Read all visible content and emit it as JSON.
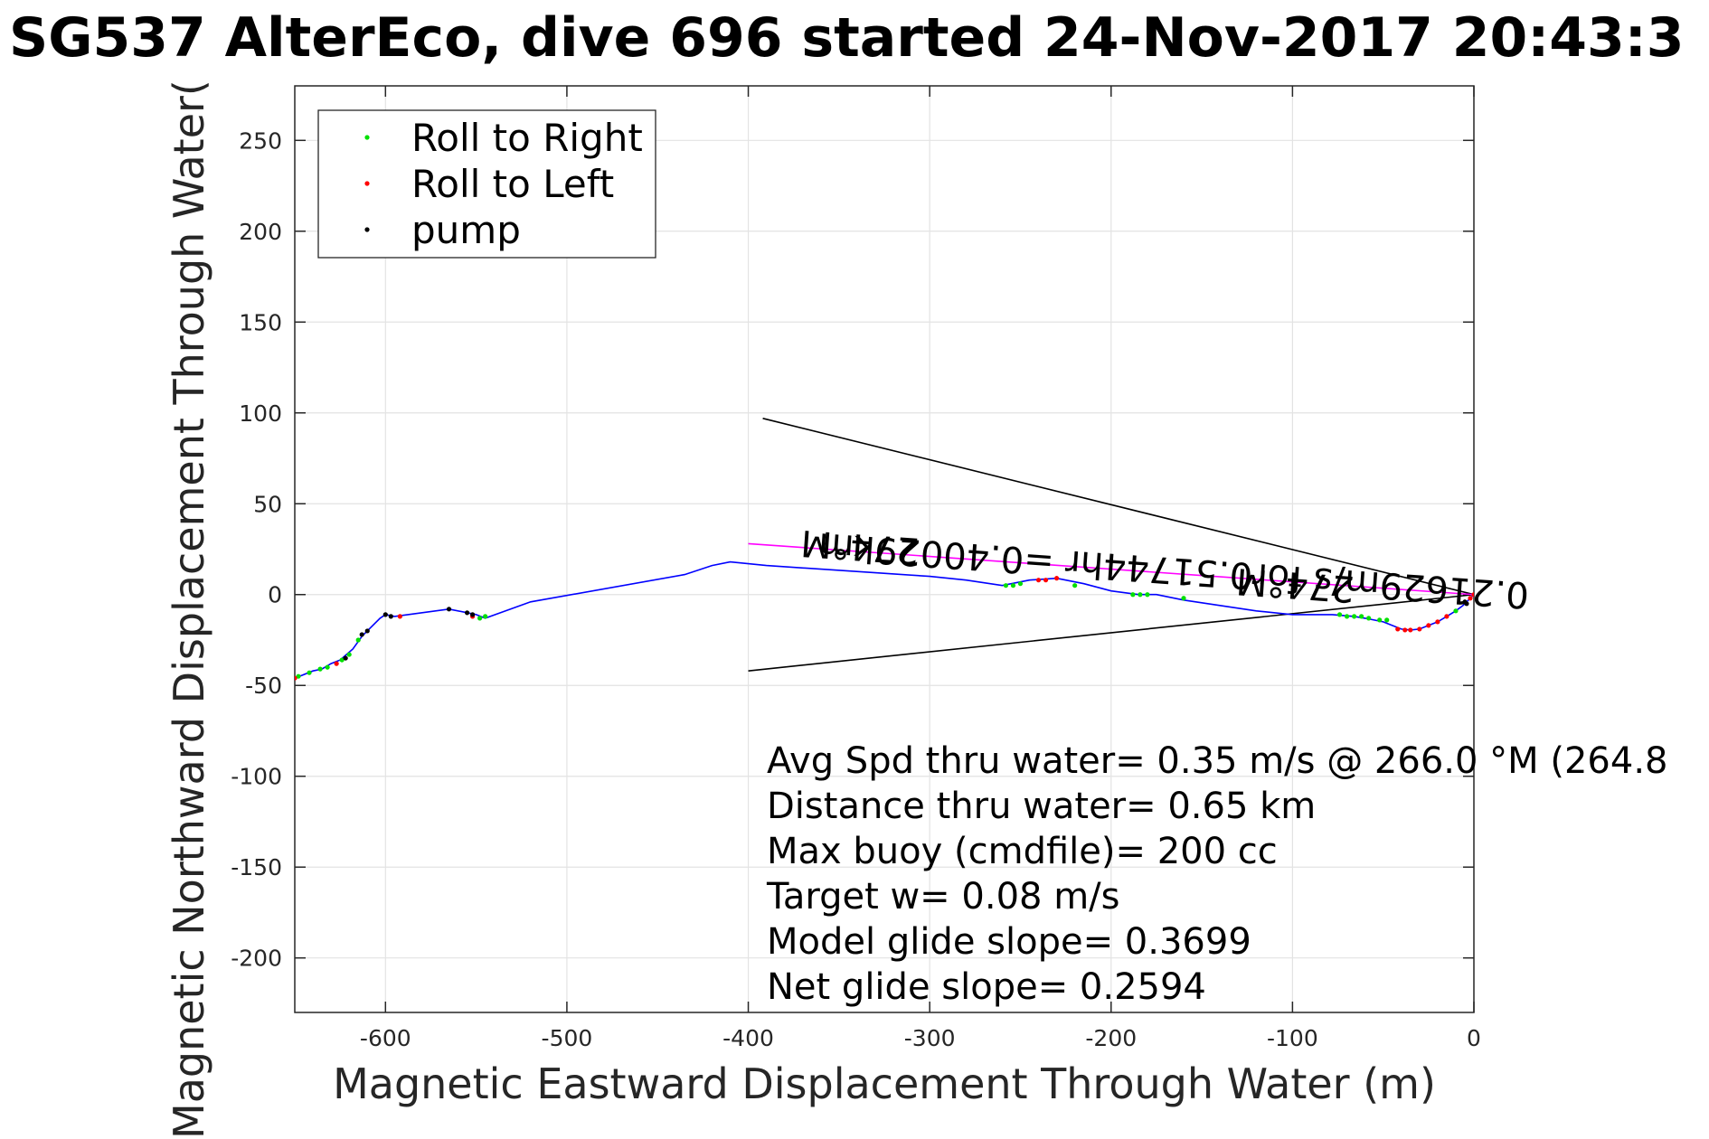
{
  "chart_data": {
    "type": "line",
    "title": "SG537 AlterEco, dive 696 started 24-Nov-2017 20:43:3",
    "xlabel": "Magnetic Eastward Displacement Through Water (m)",
    "ylabel": "Magnetic Northward Displacement Through Water(",
    "xlim": [
      -650,
      0
    ],
    "ylim": [
      -230,
      280
    ],
    "grid": true,
    "x_ticks": [
      -600,
      -500,
      -400,
      -300,
      -200,
      -100,
      0
    ],
    "y_ticks": [
      -200,
      -150,
      -100,
      -50,
      0,
      50,
      100,
      150,
      200,
      250
    ],
    "legend": {
      "placement": "top-left",
      "entries": [
        {
          "name": "Roll to Right",
          "color": "#00e000"
        },
        {
          "name": "Roll to Left",
          "color": "#ff0000"
        },
        {
          "name": "pump",
          "color": "#000000"
        }
      ]
    },
    "track": {
      "color": "#0000ff",
      "x": [
        0,
        -3,
        -6,
        -10,
        -15,
        -20,
        -25,
        -30,
        -35,
        -40,
        -45,
        -50,
        -55,
        -60,
        -66,
        -72,
        -78,
        -84,
        -90,
        -100,
        -120,
        -140,
        -160,
        -175,
        -185,
        -200,
        -215,
        -230,
        -245,
        -260,
        -280,
        -300,
        -330,
        -360,
        -390,
        -410,
        -420,
        -435,
        -520,
        -545,
        -550,
        -555,
        -565,
        -595,
        -600,
        -603,
        -610,
        -613,
        -618,
        -625,
        -630,
        -635,
        -640,
        -650
      ],
      "y": [
        0,
        -3,
        -6,
        -9,
        -12,
        -15,
        -17,
        -19,
        -19.5,
        -19,
        -17,
        -15,
        -14,
        -13,
        -12,
        -11.5,
        -11,
        -11,
        -11,
        -11,
        -9,
        -6,
        -3,
        0,
        0,
        2,
        6,
        9,
        8,
        5,
        8,
        10,
        12,
        14,
        16,
        18,
        16,
        11,
        -4,
        -13,
        -11,
        -10,
        -8,
        -12,
        -11,
        -13,
        -20,
        -23,
        -30,
        -36,
        -38,
        -41,
        -42,
        -46
      ]
    },
    "roll_right_points": {
      "x": [
        -10,
        -48,
        -52,
        -58,
        -62,
        -66,
        -70,
        -74,
        -250,
        -254,
        -258,
        -180,
        -184,
        -188,
        -545,
        -548,
        -615,
        -620,
        -624,
        -632,
        -636,
        -642,
        -648,
        -220,
        -160
      ],
      "y": [
        -9,
        -14,
        -14,
        -13,
        -12,
        -12,
        -12,
        -11,
        6,
        5,
        5,
        0,
        0,
        0,
        -12,
        -13,
        -25,
        -33,
        -36,
        -40,
        -41,
        -43,
        -45,
        5,
        -2
      ]
    },
    "roll_left_points": {
      "x": [
        0,
        -2,
        -15,
        -20,
        -25,
        -30,
        -35,
        -38,
        -42,
        -230,
        -236,
        -240,
        -592,
        -552,
        -627,
        -650
      ],
      "y": [
        0,
        -2,
        -12,
        -15,
        -17,
        -19,
        -19.5,
        -19.5,
        -19,
        9,
        8,
        8,
        -12,
        -12,
        -38,
        -46
      ]
    },
    "pump_points": {
      "x": [
        -5,
        -4,
        -565,
        -555,
        -552,
        -600,
        -597,
        -613,
        -610,
        -622
      ],
      "y": [
        -4,
        -5,
        -8,
        -10,
        -11,
        -11,
        -12,
        -22,
        -20,
        -35
      ]
    },
    "magenta_line": {
      "color": "#ff00ff",
      "x": [
        0,
        -400
      ],
      "y": [
        0,
        28
      ]
    },
    "cone_lines": [
      {
        "color": "#000000",
        "x": [
          0,
          -392
        ],
        "y": [
          0,
          97
        ]
      },
      {
        "color": "#000000",
        "x": [
          0,
          -400
        ],
        "y": [
          0,
          -42
        ]
      }
    ],
    "annotations": [
      {
        "text": "0.21629m/s for0.51744hr =0.40029km",
        "x": -165,
        "y": 20,
        "rotation": 180
      },
      {
        "text": "274°M",
        "x": -338,
        "y": 33,
        "rotation": 180
      },
      {
        "text": "274°M",
        "x": -98,
        "y": 12,
        "rotation": 180
      }
    ],
    "stats": [
      "Avg Spd thru water=  0.35 m/s @ 266.0 °M (264.8",
      "Distance thru water=  0.65 km",
      "Max buoy (cmdfile)= 200 cc",
      "Target w= 0.08 m/s",
      "Model glide slope= 0.3699",
      "Net glide slope= 0.2594"
    ]
  }
}
